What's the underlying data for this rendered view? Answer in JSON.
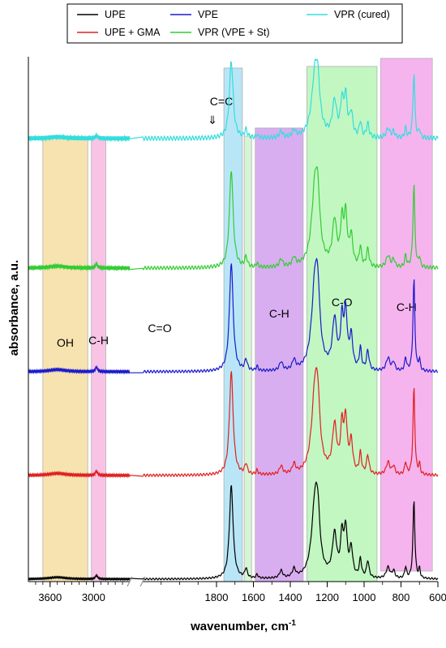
{
  "chart_data": {
    "type": "line",
    "xlabel": "wavenumber, cm",
    "xlabel_sup": "-1",
    "ylabel": "absorbance, a.u.",
    "xlim": [
      3900,
      600
    ],
    "x_reversed": true,
    "x_break": [
      2500,
      2200
    ],
    "x_ticks": [
      3600,
      3000,
      1800,
      1600,
      1400,
      1200,
      1000,
      800,
      600
    ],
    "x_tick_labels": [
      "3600",
      "3000",
      "1800",
      "1600",
      "1400",
      "1200",
      "1000",
      "800",
      "600"
    ],
    "legend_position": "top",
    "series": [
      {
        "name": "UPE",
        "color": "#000000",
        "baseline": 0.0,
        "scale": 0.9,
        "noise": 2
      },
      {
        "name": "UPE + GMA",
        "color": "#e02020",
        "baseline": 1.0,
        "scale": 1.0,
        "noise": 3
      },
      {
        "name": "VPE",
        "color": "#1a1acc",
        "baseline": 2.0,
        "scale": 1.05,
        "noise": 3
      },
      {
        "name": "VPR (VPE + St)",
        "color": "#33cc33",
        "baseline": 3.0,
        "scale": 0.95,
        "noise": 4
      },
      {
        "name": "VPR (cured)",
        "color": "#33dddd",
        "baseline": 4.25,
        "scale": 0.75,
        "noise": 5
      }
    ],
    "bands": [
      {
        "label": "OH",
        "from": 3700,
        "to": 3080,
        "color": "#f7e3b0"
      },
      {
        "label": "C-H",
        "from": 3030,
        "to": 2830,
        "color": "#f9c3e6"
      },
      {
        "label": "C=O",
        "from": 1760,
        "to": 1660,
        "color": "#b9e6f6"
      },
      {
        "label": "C=C",
        "from": 1650,
        "to": 1610,
        "color": "#d6f5d6"
      },
      {
        "label": "C-H",
        "from": 1590,
        "to": 1330,
        "color": "#d9aef0"
      },
      {
        "label": "C-O",
        "from": 1310,
        "to": 930,
        "color": "#c2f7c2"
      },
      {
        "label": "C-H",
        "from": 910,
        "to": 630,
        "color": "#f6b4ef"
      }
    ],
    "peaks": [
      {
        "x": 1720,
        "w": 12,
        "h": 1.0
      },
      {
        "x": 1640,
        "w": 8,
        "h": 0.1
      },
      {
        "x": 1580,
        "w": 6,
        "h": 0.04
      },
      {
        "x": 1450,
        "w": 10,
        "h": 0.08
      },
      {
        "x": 1380,
        "w": 10,
        "h": 0.09
      },
      {
        "x": 1265,
        "w": 22,
        "h": 0.85
      },
      {
        "x": 1250,
        "w": 12,
        "h": 0.35
      },
      {
        "x": 1160,
        "w": 14,
        "h": 0.45
      },
      {
        "x": 1120,
        "w": 9,
        "h": 0.42
      },
      {
        "x": 1100,
        "w": 10,
        "h": 0.5
      },
      {
        "x": 1070,
        "w": 10,
        "h": 0.3
      },
      {
        "x": 1020,
        "w": 7,
        "h": 0.2
      },
      {
        "x": 980,
        "w": 8,
        "h": 0.18
      },
      {
        "x": 870,
        "w": 12,
        "h": 0.12
      },
      {
        "x": 840,
        "w": 8,
        "h": 0.08
      },
      {
        "x": 775,
        "w": 6,
        "h": 0.12
      },
      {
        "x": 730,
        "w": 6,
        "h": 0.85
      },
      {
        "x": 700,
        "w": 5,
        "h": 0.1
      },
      {
        "x": 2960,
        "w": 18,
        "h": 0.04
      },
      {
        "x": 3500,
        "w": 140,
        "h": 0.02
      }
    ],
    "annotation_arrow": "⇓"
  }
}
